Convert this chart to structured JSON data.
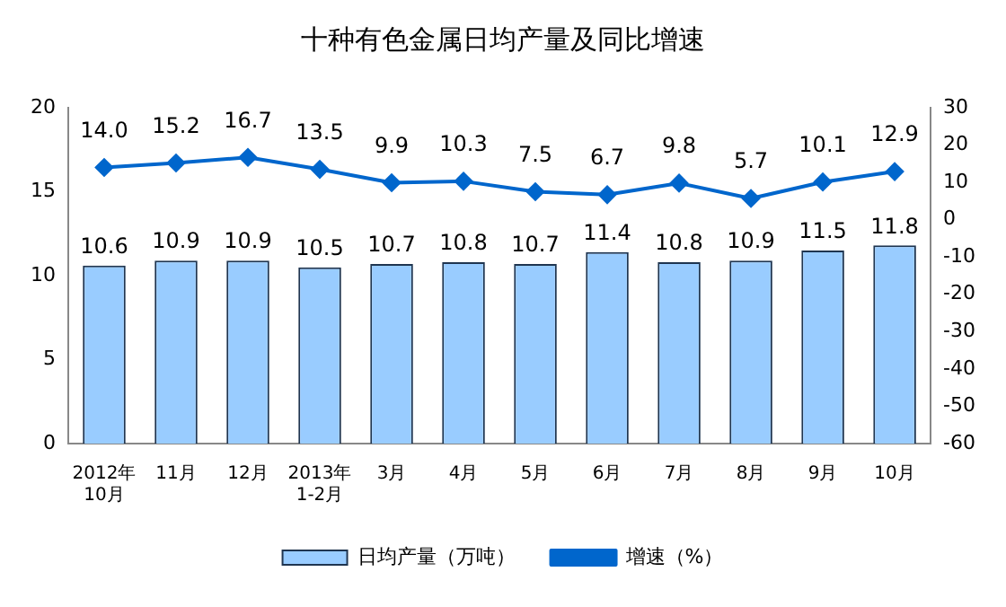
{
  "chart_data": {
    "type": "bar",
    "title": "十种有色金属日均产量及同比增速",
    "categories": [
      "2012年\n10月",
      "11月",
      "12月",
      "2013年\n1-2月",
      "3月",
      "4月",
      "5月",
      "6月",
      "7月",
      "8月",
      "9月",
      "10月"
    ],
    "series": [
      {
        "name": "日均产量（万吨）",
        "color": "#99ccff",
        "values": [
          10.6,
          10.9,
          10.9,
          10.5,
          10.7,
          10.8,
          10.7,
          11.4,
          10.8,
          10.9,
          11.5,
          11.8
        ],
        "value_labels": [
          "10.6",
          "10.9",
          "10.9",
          "10.5",
          "10.7",
          "10.8",
          "10.7",
          "11.4",
          "10.8",
          "10.9",
          "11.5",
          "11.8"
        ]
      },
      {
        "name": "增速（%）",
        "type": "line",
        "axis": "y2",
        "color": "#0066cc",
        "values": [
          14.0,
          15.2,
          16.7,
          13.5,
          9.9,
          10.3,
          7.5,
          6.7,
          9.8,
          5.7,
          10.1,
          12.9
        ],
        "value_labels": [
          "14.0",
          "15.2",
          "16.7",
          "13.5",
          "9.9",
          "10.3",
          "7.5",
          "6.7",
          "9.8",
          "5.7",
          "10.1",
          "12.9"
        ]
      }
    ],
    "ylim": [
      0,
      20
    ],
    "yticks": [
      0,
      5,
      10,
      15,
      20
    ],
    "y2lim": [
      -60,
      30
    ],
    "y2ticks": [
      -60,
      -50,
      -40,
      -30,
      -20,
      -10,
      0,
      10,
      20,
      30
    ],
    "grid": false,
    "legend": "bottom",
    "marker": "diamond",
    "line_style": "solid"
  }
}
